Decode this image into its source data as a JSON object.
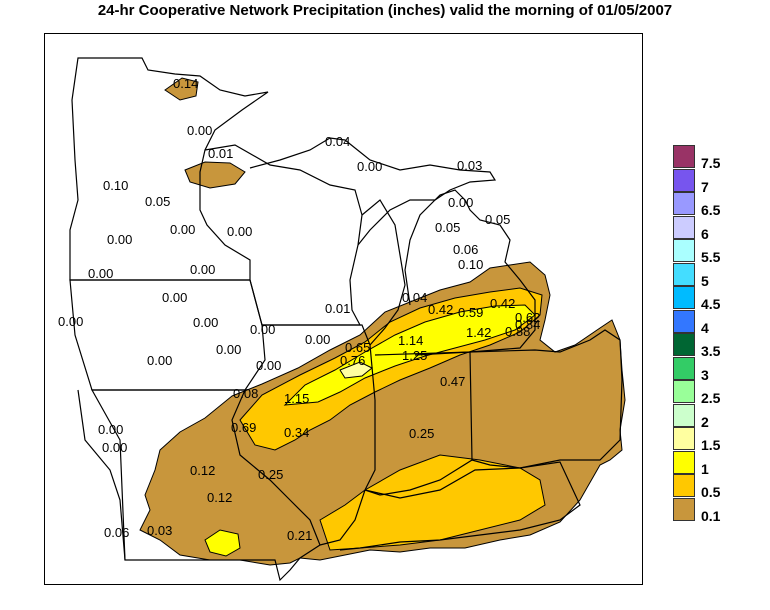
{
  "title": "24-hr Cooperative Network Precipitation (inches) valid the morning of  01/05/2007",
  "colors": {
    "brown": "#c8963c",
    "orange": "#ffc800",
    "yellow": "#ffff00",
    "lightyellow": "#ffffa0",
    "background": "#ffffff"
  },
  "legend": [
    {
      "label": "7.5",
      "color": "#993366"
    },
    {
      "label": "7",
      "color": "#7755ee"
    },
    {
      "label": "6.5",
      "color": "#9999ff"
    },
    {
      "label": "6",
      "color": "#ccccff"
    },
    {
      "label": "5.5",
      "color": "#aaffff"
    },
    {
      "label": "5",
      "color": "#44ddff"
    },
    {
      "label": "4.5",
      "color": "#00bbff"
    },
    {
      "label": "4",
      "color": "#3377ff"
    },
    {
      "label": "3.5",
      "color": "#006633"
    },
    {
      "label": "3",
      "color": "#33cc66"
    },
    {
      "label": "2.5",
      "color": "#99ff99"
    },
    {
      "label": "2",
      "color": "#ccffcc"
    },
    {
      "label": "1.5",
      "color": "#ffffa0"
    },
    {
      "label": "1",
      "color": "#ffff00"
    },
    {
      "label": "0.5",
      "color": "#ffc800"
    },
    {
      "label": "0.1",
      "color": "#c8963c"
    }
  ],
  "stations": [
    {
      "v": "0.14"
    },
    {
      "v": "0.00"
    },
    {
      "v": "0.01"
    },
    {
      "v": "0.04"
    },
    {
      "v": "0.00"
    },
    {
      "v": "0.03"
    },
    {
      "v": "0.10"
    },
    {
      "v": "0.05"
    },
    {
      "v": "0.00"
    },
    {
      "v": "0.05"
    },
    {
      "v": "0.00"
    },
    {
      "v": "0.00"
    },
    {
      "v": "0.00"
    },
    {
      "v": "0.05"
    },
    {
      "v": "0.06"
    },
    {
      "v": "0.10"
    },
    {
      "v": "0.00"
    },
    {
      "v": "0.00"
    },
    {
      "v": "0.00"
    },
    {
      "v": "0.01"
    },
    {
      "v": "0.04"
    },
    {
      "v": "0.42"
    },
    {
      "v": "0.59"
    },
    {
      "v": "0.42"
    },
    {
      "v": "0.62"
    },
    {
      "v": "0.84"
    },
    {
      "v": "0.00"
    },
    {
      "v": "0.00"
    },
    {
      "v": "1.42"
    },
    {
      "v": "0.88"
    },
    {
      "v": "0.00"
    },
    {
      "v": "0.00"
    },
    {
      "v": "0.65"
    },
    {
      "v": "1.14"
    },
    {
      "v": "0.00"
    },
    {
      "v": "0.00"
    },
    {
      "v": "0.76"
    },
    {
      "v": "1.25"
    },
    {
      "v": "0.00"
    },
    {
      "v": "0.47"
    },
    {
      "v": "0.08"
    },
    {
      "v": "1.15"
    },
    {
      "v": "0.00"
    },
    {
      "v": "0.69"
    },
    {
      "v": "0.34"
    },
    {
      "v": "0.00"
    },
    {
      "v": "0.25"
    },
    {
      "v": "0.12"
    },
    {
      "v": "0.25"
    },
    {
      "v": "0.12"
    },
    {
      "v": "0.06"
    },
    {
      "v": "0.03"
    },
    {
      "v": "0.21"
    }
  ]
}
